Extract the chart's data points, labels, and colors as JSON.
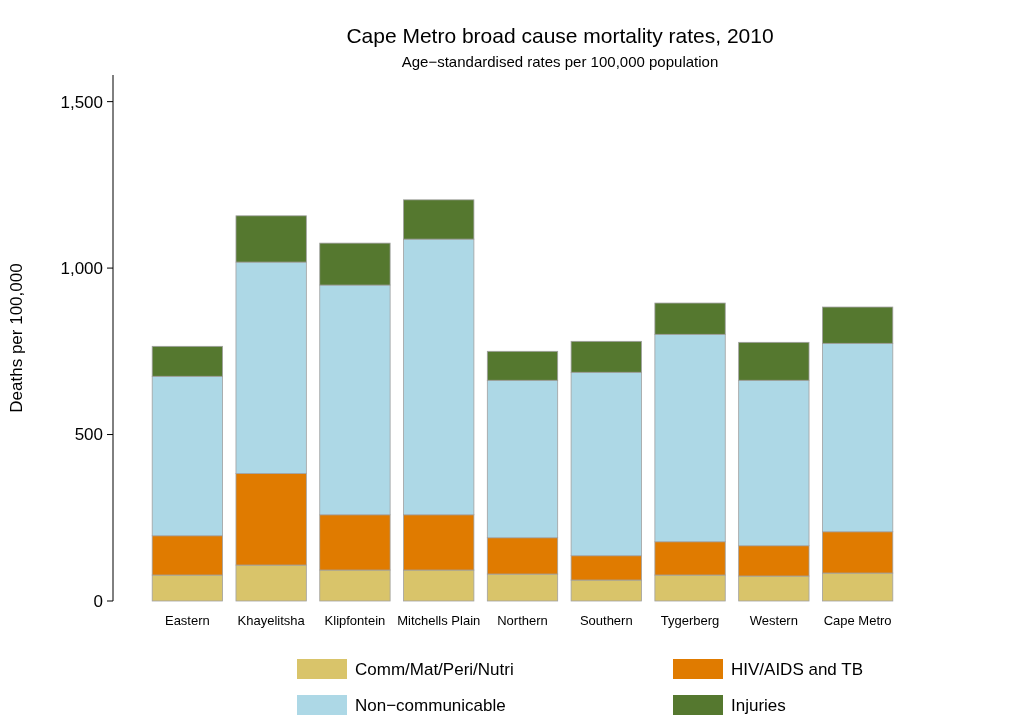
{
  "chart_data": {
    "type": "bar",
    "title": "Cape Metro broad cause mortality rates, 2010",
    "subtitle": "Age−standardised rates per 100,000 population",
    "ylabel": "Deaths per 100,000",
    "categories": [
      "Eastern",
      "Khayelitsha",
      "Klipfontein",
      "Mitchells Plain",
      "Northern",
      "Southern",
      "Tygerberg",
      "Western",
      "Cape Metro"
    ],
    "stacked": true,
    "ylim": [
      0,
      1580
    ],
    "yticks": [
      0,
      {
        "value": 500,
        "label": "500"
      },
      {
        "value": 1000,
        "label": "1,000"
      },
      {
        "value": 1500,
        "label": "1,500"
      }
    ],
    "grid": false,
    "legend": "bottom",
    "series": [
      {
        "name": "Comm/Mat/Peri/Nutri",
        "color": "#d9c46a",
        "values": [
          78,
          108,
          93,
          93,
          81,
          63,
          78,
          75,
          84
        ]
      },
      {
        "name": "HIV/AIDS and TB",
        "color": "#e07b00",
        "values": [
          118,
          275,
          166,
          166,
          109,
          73,
          100,
          91,
          124
        ]
      },
      {
        "name": "Non−communicable",
        "color": "#add8e6",
        "values": [
          479,
          635,
          690,
          828,
          473,
          551,
          623,
          497,
          566
        ]
      },
      {
        "name": "Injuries",
        "color": "#55782f",
        "values": [
          90,
          139,
          126,
          118,
          87,
          93,
          94,
          114,
          109
        ]
      }
    ]
  }
}
